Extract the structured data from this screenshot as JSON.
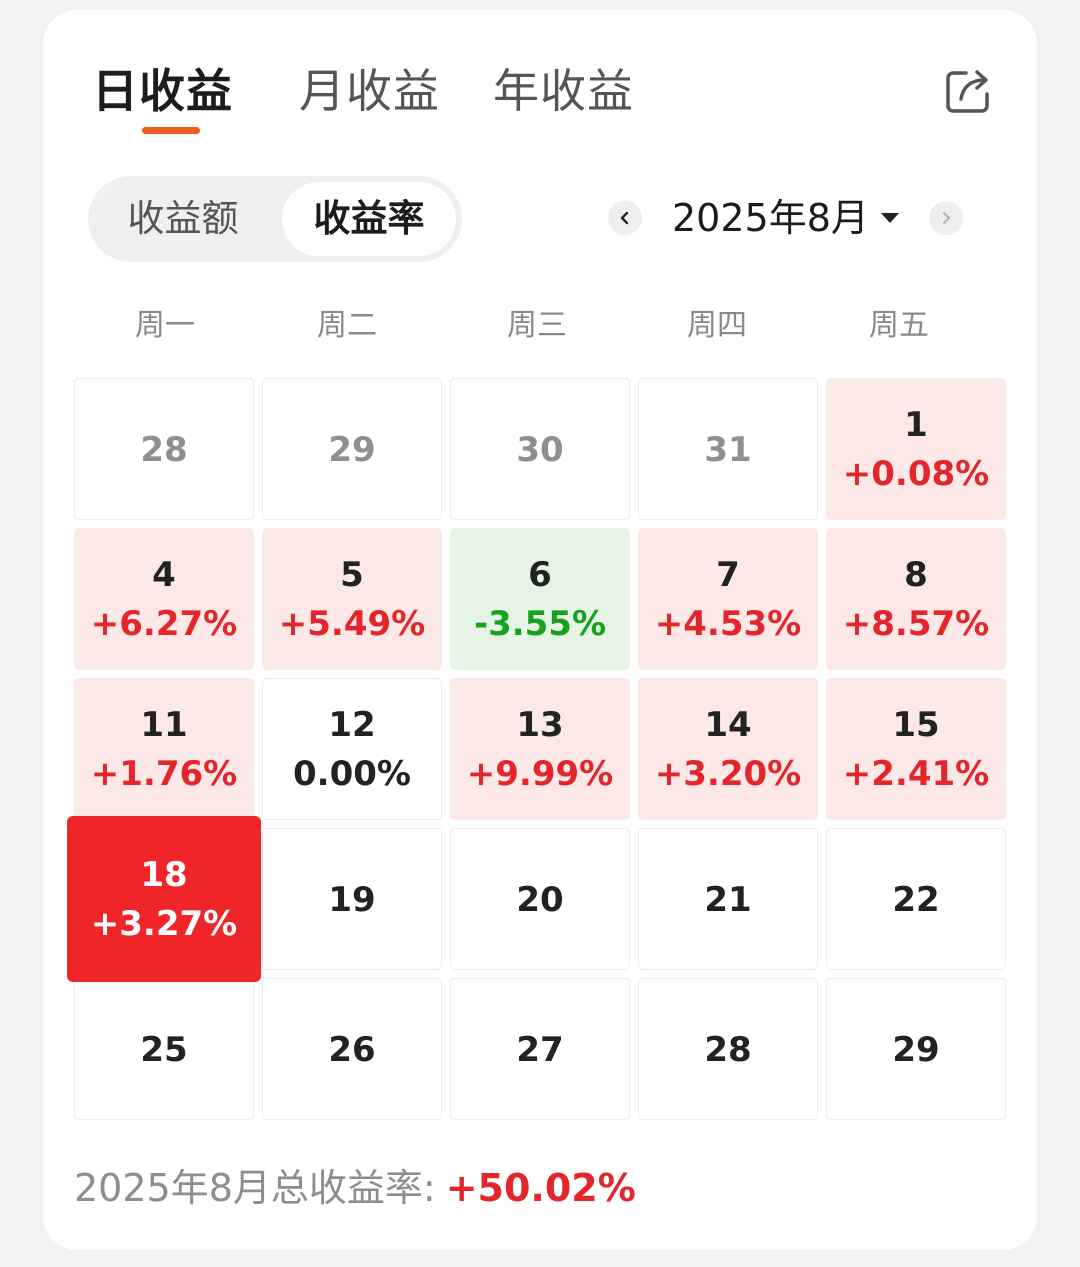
{
  "tabs": [
    {
      "label": "日收益",
      "active": true
    },
    {
      "label": "月收益",
      "active": false
    },
    {
      "label": "年收益",
      "active": false
    }
  ],
  "segment": {
    "left": "收益额",
    "right": "收益率",
    "selected": "收益率"
  },
  "month": {
    "label": "2025年8月"
  },
  "weekdays": [
    "周一",
    "周二",
    "周三",
    "周四",
    "周五"
  ],
  "cells": [
    {
      "day": "28",
      "value": "",
      "type": "prev"
    },
    {
      "day": "29",
      "value": "",
      "type": "prev"
    },
    {
      "day": "30",
      "value": "",
      "type": "prev"
    },
    {
      "day": "31",
      "value": "",
      "type": "prev"
    },
    {
      "day": "1",
      "value": "+0.08%",
      "type": "up"
    },
    {
      "day": "4",
      "value": "+6.27%",
      "type": "up"
    },
    {
      "day": "5",
      "value": "+5.49%",
      "type": "up"
    },
    {
      "day": "6",
      "value": "-3.55%",
      "type": "down"
    },
    {
      "day": "7",
      "value": "+4.53%",
      "type": "up"
    },
    {
      "day": "8",
      "value": "+8.57%",
      "type": "up"
    },
    {
      "day": "11",
      "value": "+1.76%",
      "type": "up"
    },
    {
      "day": "12",
      "value": "0.00%",
      "type": "flat"
    },
    {
      "day": "13",
      "value": "+9.99%",
      "type": "up"
    },
    {
      "day": "14",
      "value": "+3.20%",
      "type": "up"
    },
    {
      "day": "15",
      "value": "+2.41%",
      "type": "up"
    },
    {
      "day": "18",
      "value": "+3.27%",
      "type": "selected"
    },
    {
      "day": "19",
      "value": "",
      "type": "future"
    },
    {
      "day": "20",
      "value": "",
      "type": "future"
    },
    {
      "day": "21",
      "value": "",
      "type": "future"
    },
    {
      "day": "22",
      "value": "",
      "type": "future"
    },
    {
      "day": "25",
      "value": "",
      "type": "future"
    },
    {
      "day": "26",
      "value": "",
      "type": "future"
    },
    {
      "day": "27",
      "value": "",
      "type": "future"
    },
    {
      "day": "28",
      "value": "",
      "type": "future"
    },
    {
      "day": "29",
      "value": "",
      "type": "future"
    }
  ],
  "footer": {
    "label": "2025年8月总收益率:",
    "total": "+50.02%"
  },
  "colors": {
    "accent": "#ef5a1d",
    "up": "#e3262b",
    "down": "#17a11c",
    "selected_bg": "#f0252a"
  }
}
